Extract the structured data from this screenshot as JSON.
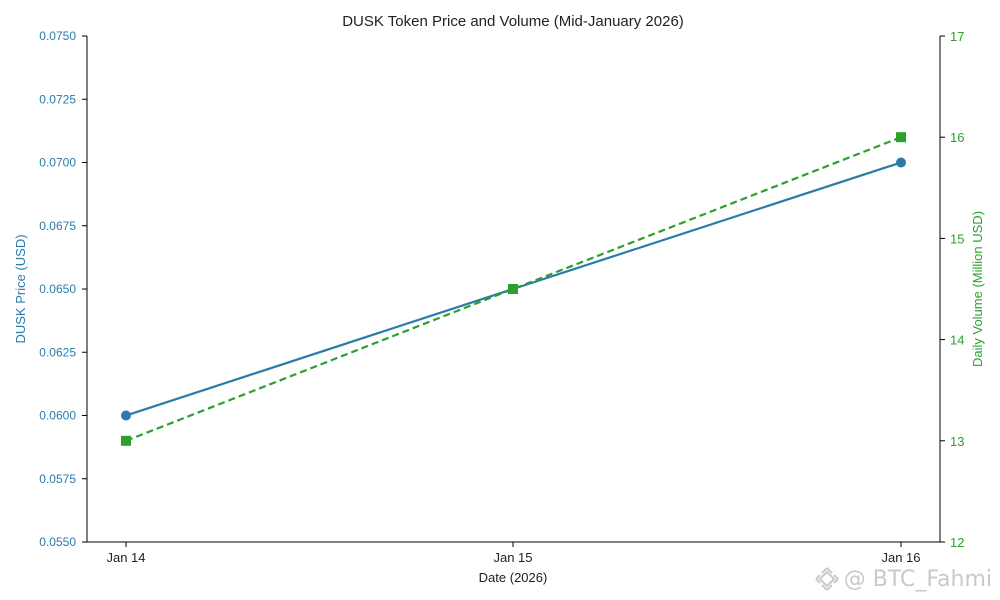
{
  "chart_data": {
    "type": "line",
    "title": "DUSK Token Price and Volume (Mid-January 2026)",
    "xlabel": "Date (2026)",
    "ylabel": "DUSK Price (USD)",
    "y2label": "Daily Volume (Million USD)",
    "categories": [
      "Jan 14",
      "Jan 15",
      "Jan 16"
    ],
    "ylim": [
      0.055,
      0.075
    ],
    "y2lim": [
      12,
      17
    ],
    "yticks": [
      "0.0550",
      "0.0575",
      "0.0600",
      "0.0625",
      "0.0650",
      "0.0675",
      "0.0700",
      "0.0725",
      "0.0750"
    ],
    "y2ticks": [
      "12",
      "13",
      "14",
      "15",
      "16",
      "17"
    ],
    "grid": false,
    "series": [
      {
        "name": "DUSK Price",
        "axis": "left",
        "values": [
          0.06,
          0.065,
          0.07
        ],
        "color": "#2b7ba8",
        "marker": "circle",
        "line_style": "solid"
      },
      {
        "name": "Daily Volume",
        "axis": "right",
        "values": [
          13.0,
          14.5,
          16.0
        ],
        "color": "#2ca02c",
        "marker": "square",
        "line_style": "dashed"
      }
    ]
  },
  "watermark": {
    "text": "@ BTC_Fahmi",
    "icon": "binance-square-logo-icon"
  }
}
